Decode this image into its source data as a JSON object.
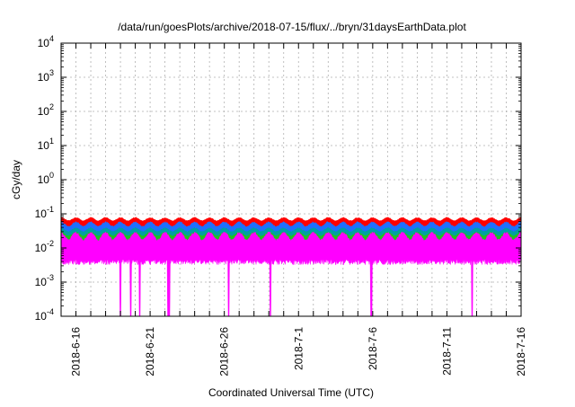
{
  "chart_data": {
    "type": "area",
    "title": "/data/run/goesPlots/archive/2018-07-15/flux/../bryn/31daysEarthData.plot",
    "xlabel": "Coordinated Universal Time (UTC)",
    "ylabel": "cGy/day",
    "y_scale": "log",
    "ylim": [
      0.0001,
      10000
    ],
    "xlim": [
      "2018-6-15",
      "2018-7-16"
    ],
    "grid": true,
    "y_ticks": [
      {
        "value": 0.0001,
        "base": "10",
        "exp": "-4"
      },
      {
        "value": 0.001,
        "base": "10",
        "exp": "-3"
      },
      {
        "value": 0.01,
        "base": "10",
        "exp": "-2"
      },
      {
        "value": 0.1,
        "base": "10",
        "exp": "-1"
      },
      {
        "value": 1,
        "base": "10",
        "exp": "0"
      },
      {
        "value": 10,
        "base": "10",
        "exp": "1"
      },
      {
        "value": 100,
        "base": "10",
        "exp": "2"
      },
      {
        "value": 1000,
        "base": "10",
        "exp": "3"
      },
      {
        "value": 10000,
        "base": "10",
        "exp": "4"
      }
    ],
    "x_ticks": [
      "2018-6-16",
      "2018-6-21",
      "2018-6-26",
      "2018-7-1",
      "2018-7-6",
      "2018-7-11",
      "2018-7-16"
    ],
    "series": [
      {
        "color": "#ff0000",
        "approx_range": [
          0.045,
          0.08
        ]
      },
      {
        "color": "#1f6fff",
        "approx_range": [
          0.025,
          0.06
        ]
      },
      {
        "color": "#00a0a0",
        "approx_range": [
          0.02,
          0.04
        ]
      },
      {
        "color": "#20c020",
        "approx_range": [
          0.015,
          0.03
        ]
      },
      {
        "color": "#ff00ff",
        "approx_range": [
          0.004,
          0.03
        ]
      }
    ],
    "magenta_dropouts": [
      "2018-6-19",
      "2018-6-19.7",
      "2018-6-20.3",
      "2018-6-22.2",
      "2018-6-22.3",
      "2018-6-26.3",
      "2018-6-29.1",
      "2018-7-5.9",
      "2018-7-12.7"
    ]
  }
}
